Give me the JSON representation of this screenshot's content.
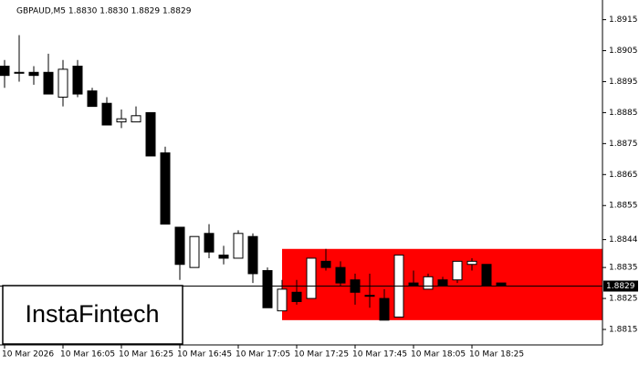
{
  "chart_data": {
    "type": "candlestick",
    "title": "GBPAUD,M5  1.8830 1.8830 1.8829 1.8829",
    "categories": [
      "10 Mar 2026",
      null,
      null,
      null,
      "10 Mar 16:05",
      null,
      null,
      null,
      "10 Mar 16:25",
      null,
      null,
      null,
      "10 Mar 16:45",
      null,
      null,
      null,
      "10 Mar 17:05",
      null,
      null,
      null,
      "10 Mar 17:25",
      null,
      null,
      null,
      "10 Mar 17:45",
      null,
      null,
      null,
      "10 Mar 18:05",
      null,
      null,
      null,
      "10 Mar 18:25",
      null,
      null
    ],
    "open": [
      1.89,
      1.8898,
      1.8898,
      1.8898,
      1.889,
      1.89,
      1.8892,
      1.8888,
      1.8882,
      1.8882,
      1.8885,
      1.8872,
      1.8848,
      1.8835,
      1.8846,
      1.8839,
      1.8838,
      1.8845,
      1.8834,
      1.8821,
      1.8827,
      1.8825,
      1.8837,
      1.8835,
      1.8831,
      1.8826,
      1.8825,
      1.8819,
      1.883,
      1.8828,
      1.8831,
      1.8831,
      1.8836,
      1.8836,
      1.883
    ],
    "high": [
      1.8902,
      1.891,
      1.89,
      1.8904,
      1.8902,
      1.8902,
      1.8893,
      1.889,
      1.8886,
      1.8887,
      1.8885,
      1.8874,
      1.8848,
      1.8845,
      1.8849,
      1.8842,
      1.8847,
      1.8846,
      1.8835,
      1.8831,
      1.8831,
      1.8838,
      1.8841,
      1.8837,
      1.8833,
      1.8833,
      1.8828,
      1.8839,
      1.8834,
      1.8833,
      1.8832,
      1.8837,
      1.8838,
      1.8836,
      1.883
    ],
    "low": [
      1.8893,
      1.8895,
      1.8894,
      1.8891,
      1.8887,
      1.889,
      1.8887,
      1.8881,
      1.888,
      1.8882,
      1.8871,
      1.8849,
      1.8831,
      1.8835,
      1.8838,
      1.8836,
      1.8838,
      1.883,
      1.8822,
      1.8821,
      1.8823,
      1.8825,
      1.8834,
      1.8829,
      1.8823,
      1.8822,
      1.8818,
      1.8819,
      1.8829,
      1.8828,
      1.8829,
      1.883,
      1.8834,
      1.8829,
      1.8829
    ],
    "close": [
      1.8897,
      1.8898,
      1.8897,
      1.8891,
      1.8899,
      1.8891,
      1.8887,
      1.8881,
      1.8883,
      1.8884,
      1.8871,
      1.8849,
      1.8836,
      1.8845,
      1.884,
      1.8838,
      1.8846,
      1.8833,
      1.8822,
      1.8828,
      1.8824,
      1.8838,
      1.8835,
      1.883,
      1.8827,
      1.8826,
      1.8818,
      1.8839,
      1.8829,
      1.8832,
      1.8829,
      1.8837,
      1.8837,
      1.8829,
      1.8829
    ],
    "ylim": [
      1.881,
      1.8919
    ],
    "yticks": [
      1.8915,
      1.8905,
      1.8895,
      1.8885,
      1.8875,
      1.8865,
      1.8855,
      1.8844,
      1.8835,
      1.8825,
      1.8815
    ],
    "price_line": 1.8829,
    "zone": {
      "low": 1.8818,
      "high": 1.8841,
      "start_index": 19,
      "color": "#ff0000"
    },
    "watermark": "InstaFintech"
  }
}
